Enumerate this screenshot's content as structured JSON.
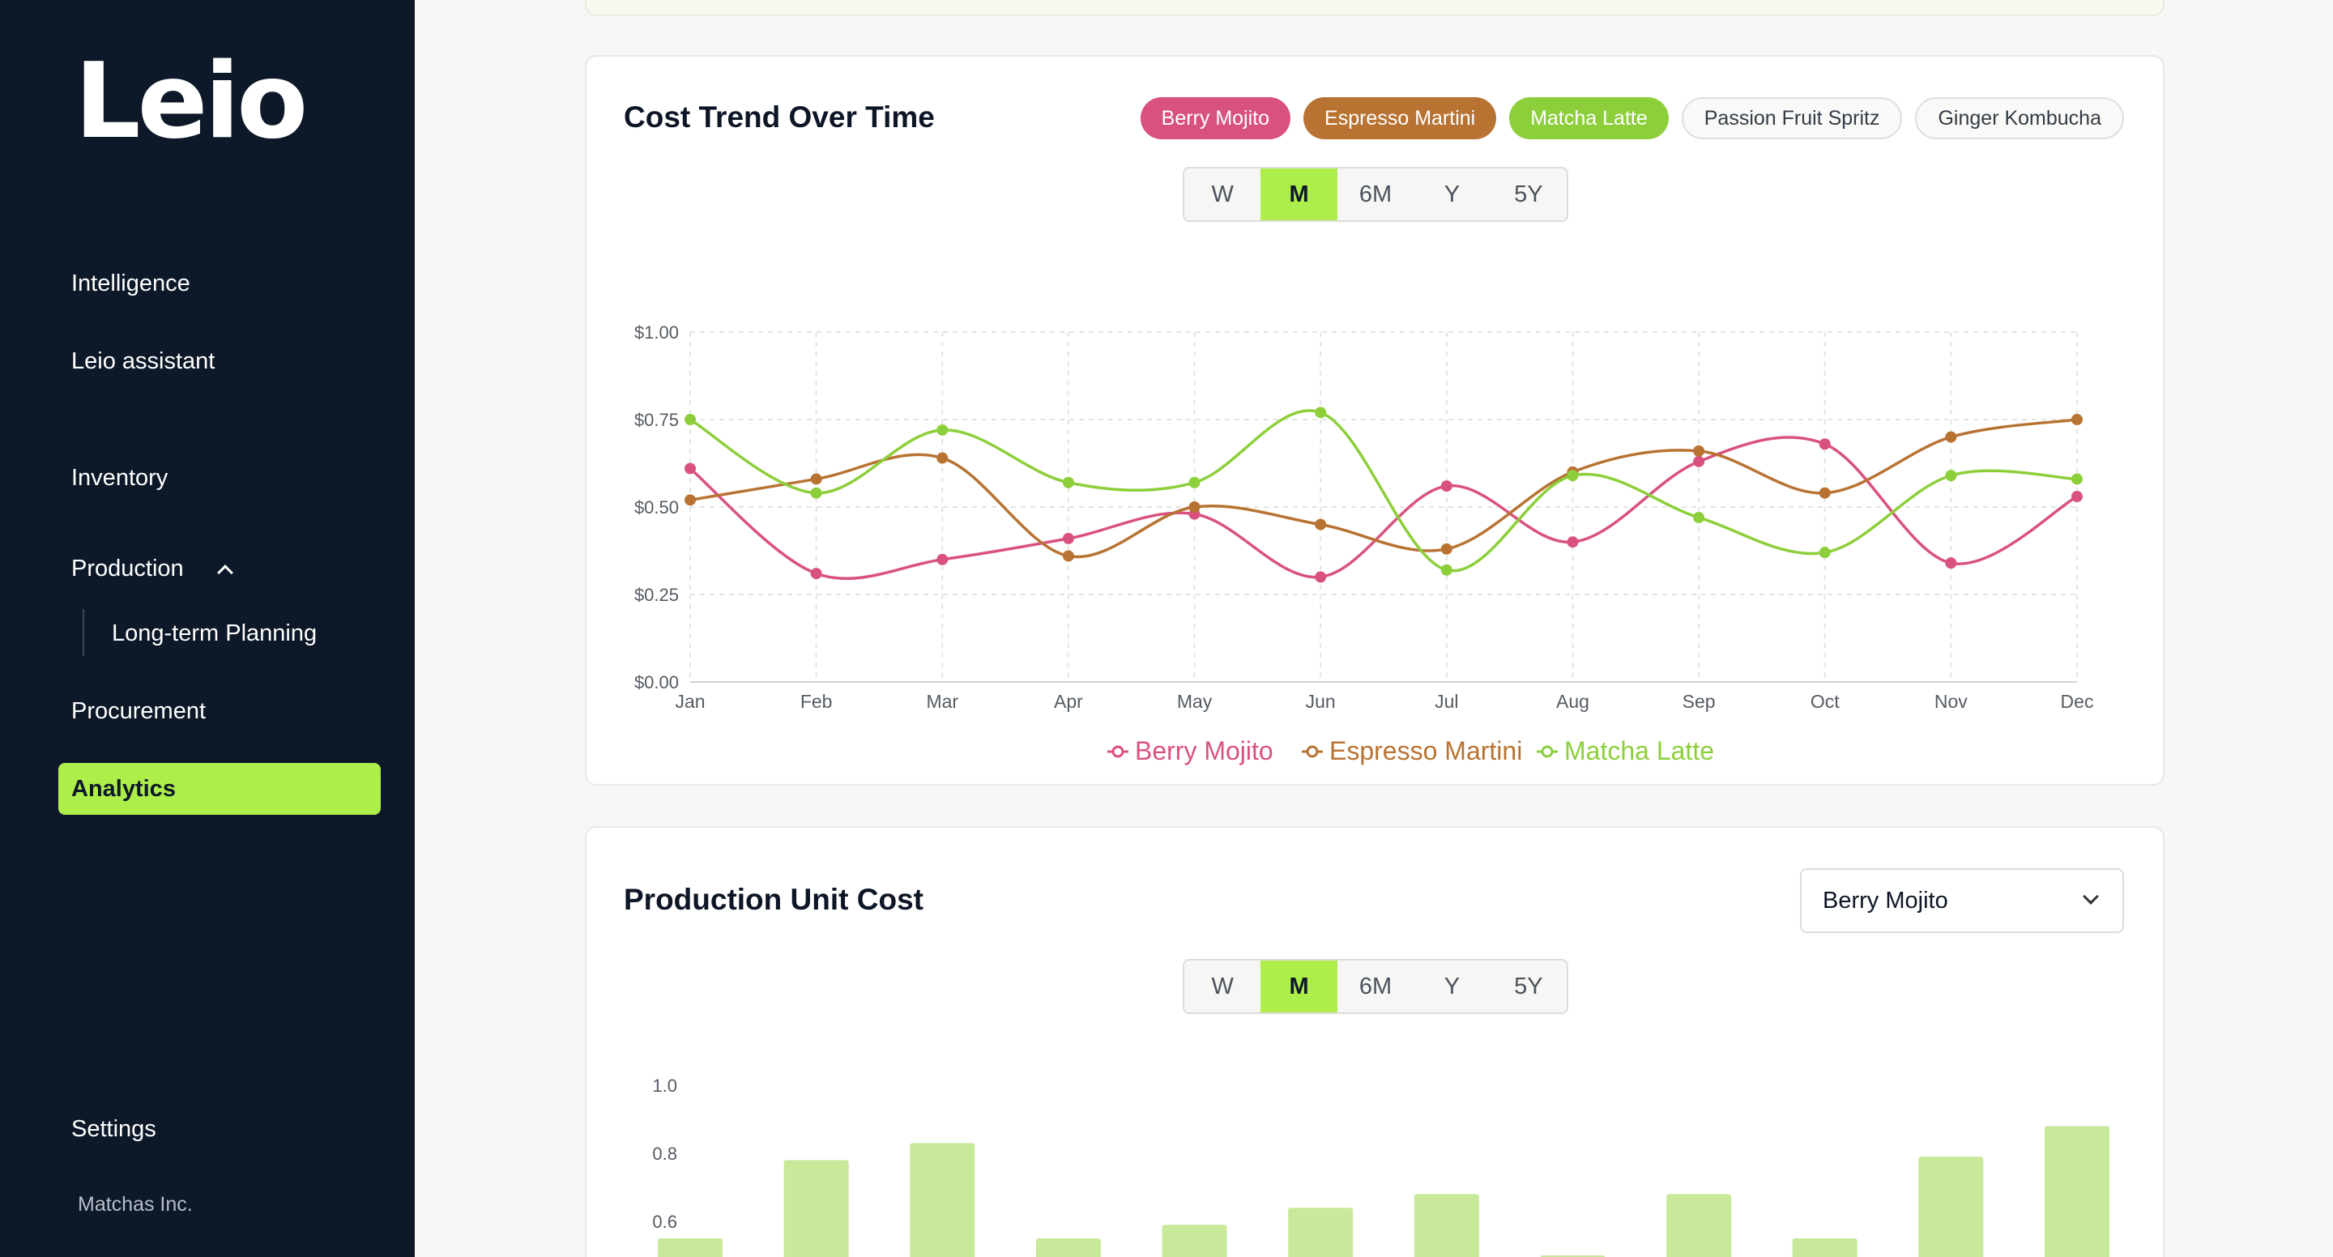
{
  "sidebar": {
    "logo": "Leio",
    "items": [
      {
        "label": "Intelligence"
      },
      {
        "label": "Leio assistant"
      },
      {
        "label": "Inventory"
      },
      {
        "label": "Production"
      },
      {
        "label": "Long-term Planning"
      },
      {
        "label": "Procurement"
      },
      {
        "label": "Analytics"
      }
    ],
    "settings": "Settings",
    "company": "Matchas Inc."
  },
  "cost_trend": {
    "title": "Cost Trend Over Time",
    "pills": [
      {
        "label": "Berry Mojito",
        "active": true,
        "color": "#d9527f"
      },
      {
        "label": "Espresso Martini",
        "active": true,
        "color": "#b87333"
      },
      {
        "label": "Matcha Latte",
        "active": true,
        "color": "#8ccf3a"
      },
      {
        "label": "Passion Fruit Spritz",
        "active": false
      },
      {
        "label": "Ginger Kombucha",
        "active": false
      }
    ],
    "ranges": [
      "W",
      "M",
      "6M",
      "Y",
      "5Y"
    ],
    "selected_range": "M"
  },
  "unit_cost": {
    "title": "Production Unit Cost",
    "dropdown_value": "Berry Mojito",
    "ranges": [
      "W",
      "M",
      "6M",
      "Y",
      "5Y"
    ],
    "selected_range": "M"
  },
  "chart_data": [
    {
      "type": "line",
      "title": "Cost Trend Over Time",
      "categories": [
        "Jan",
        "Feb",
        "Mar",
        "Apr",
        "May",
        "Jun",
        "Jul",
        "Aug",
        "Sep",
        "Oct",
        "Nov",
        "Dec"
      ],
      "y_ticks": [
        "$0.00",
        "$0.25",
        "$0.50",
        "$0.75",
        "$1.00"
      ],
      "ylim": [
        0,
        1
      ],
      "grid": true,
      "legend": "bottom-center",
      "series": [
        {
          "name": "Berry Mojito",
          "color": "#d9527f",
          "values": [
            0.61,
            0.31,
            0.35,
            0.41,
            0.48,
            0.3,
            0.56,
            0.4,
            0.63,
            0.68,
            0.34,
            0.53
          ]
        },
        {
          "name": "Espresso Martini",
          "color": "#b87333",
          "values": [
            0.52,
            0.58,
            0.64,
            0.36,
            0.5,
            0.45,
            0.38,
            0.6,
            0.66,
            0.54,
            0.7,
            0.75
          ]
        },
        {
          "name": "Matcha Latte",
          "color": "#8ccf3a",
          "values": [
            0.75,
            0.54,
            0.72,
            0.57,
            0.57,
            0.77,
            0.32,
            0.59,
            0.47,
            0.37,
            0.59,
            0.58
          ]
        }
      ]
    },
    {
      "type": "bar",
      "title": "Production Unit Cost",
      "y_ticks": [
        "1.0",
        "0.8",
        "0.6"
      ],
      "ylim_visible": [
        0.6,
        1.0
      ],
      "color": "#c8e89a",
      "values": [
        0.55,
        0.78,
        0.83,
        0.55,
        0.59,
        0.64,
        0.68,
        0.5,
        0.68,
        0.55,
        0.79,
        0.88
      ]
    }
  ]
}
